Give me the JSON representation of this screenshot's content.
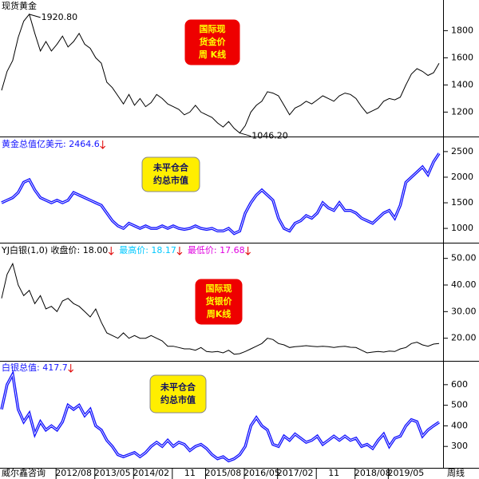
{
  "chart_data": [
    {
      "type": "line",
      "title": "现货黄金",
      "box": [
        "国际现",
        "货金价",
        "周 K线"
      ],
      "box_style": "red",
      "annotations": [
        "1920.80",
        "1046.20"
      ],
      "color": "#000000",
      "values": [
        1360,
        1500,
        1580,
        1750,
        1870,
        1920.8,
        1780,
        1650,
        1720,
        1650,
        1700,
        1760,
        1680,
        1720,
        1780,
        1700,
        1670,
        1600,
        1560,
        1420,
        1380,
        1320,
        1260,
        1330,
        1250,
        1300,
        1240,
        1270,
        1330,
        1300,
        1260,
        1240,
        1220,
        1180,
        1200,
        1250,
        1200,
        1180,
        1160,
        1120,
        1090,
        1130,
        1080,
        1046.2,
        1100,
        1200,
        1250,
        1280,
        1350,
        1340,
        1320,
        1250,
        1180,
        1230,
        1250,
        1280,
        1260,
        1290,
        1320,
        1300,
        1280,
        1320,
        1340,
        1330,
        1300,
        1240,
        1190,
        1210,
        1230,
        1280,
        1300,
        1290,
        1310,
        1400,
        1480,
        1520,
        1500,
        1470,
        1490,
        1560
      ],
      "ylim": [
        1026,
        2014
      ],
      "yticks": [
        1200,
        1400,
        1600,
        1800
      ]
    },
    {
      "type": "line",
      "title": "黄金总值亿美元: 2464.6",
      "box": [
        "未平仓合",
        "约总市值"
      ],
      "box_style": "yellow",
      "color": "#1414ff",
      "values": [
        1500,
        1550,
        1600,
        1700,
        1900,
        1950,
        1750,
        1600,
        1550,
        1500,
        1550,
        1500,
        1550,
        1700,
        1650,
        1600,
        1550,
        1500,
        1450,
        1300,
        1150,
        1050,
        1000,
        1100,
        1050,
        1000,
        1050,
        1000,
        1000,
        1050,
        1000,
        1050,
        1000,
        980,
        1000,
        1050,
        1000,
        980,
        1000,
        950,
        950,
        1000,
        900,
        950,
        1300,
        1500,
        1650,
        1750,
        1650,
        1550,
        1200,
        1000,
        950,
        1100,
        1150,
        1250,
        1200,
        1300,
        1500,
        1400,
        1350,
        1500,
        1350,
        1350,
        1300,
        1200,
        1150,
        1100,
        1200,
        1300,
        1350,
        1200,
        1450,
        1900,
        2000,
        2100,
        2200,
        2050,
        2300,
        2464.6
      ],
      "ylim": [
        752,
        2732
      ],
      "yticks": [
        1000,
        1500,
        2000,
        2500
      ]
    },
    {
      "type": "line",
      "title": "YJ白银(1,0) 收盘价: 18.00",
      "subtitles": [
        {
          "text": "最高价: 18.17",
          "color": "#00c8ff"
        },
        {
          "text": "最低价: 17.68",
          "color": "#e000e0"
        }
      ],
      "box": [
        "国际现",
        "货银价",
        "周K线"
      ],
      "box_style": "red",
      "color": "#000000",
      "values": [
        35,
        44,
        48,
        40,
        36,
        38,
        33,
        36,
        31,
        32,
        30,
        34,
        35,
        33,
        32,
        30,
        28,
        31,
        26,
        22,
        21,
        20,
        22,
        20,
        21,
        20,
        20,
        21,
        20,
        19,
        17,
        17,
        16.5,
        16,
        16,
        15.5,
        16.5,
        15,
        14.8,
        15,
        14.5,
        15.5,
        14,
        14.2,
        15,
        16,
        17,
        18,
        20,
        19.5,
        18,
        17.5,
        16.5,
        16.8,
        17,
        17.2,
        17,
        16.8,
        17,
        16.8,
        16.5,
        16.8,
        17,
        16.6,
        16.5,
        15.5,
        14.5,
        14.8,
        15,
        14.8,
        15.2,
        15,
        16,
        16.5,
        18,
        18.5,
        17.5,
        17,
        17.8,
        18
      ],
      "ylim": [
        11.8,
        54.7
      ],
      "yticks": [
        {
          "value": 20,
          "label": "20.00"
        },
        {
          "value": 30,
          "label": "30.00"
        },
        {
          "value": 40,
          "label": "40.00"
        },
        {
          "value": 50,
          "label": "50.00"
        }
      ]
    },
    {
      "type": "line",
      "title": "白银总值: 417.7",
      "box": [
        "未平仓合",
        "约总市值"
      ],
      "box_style": "yellow",
      "color": "#1414ff",
      "values": [
        480,
        600,
        650,
        480,
        420,
        460,
        360,
        420,
        380,
        400,
        380,
        420,
        500,
        480,
        500,
        450,
        480,
        400,
        380,
        330,
        300,
        260,
        250,
        260,
        270,
        250,
        270,
        300,
        320,
        300,
        330,
        300,
        320,
        310,
        280,
        300,
        310,
        290,
        260,
        240,
        250,
        230,
        240,
        260,
        300,
        400,
        440,
        400,
        380,
        310,
        300,
        350,
        330,
        360,
        340,
        320,
        330,
        350,
        310,
        330,
        350,
        330,
        350,
        330,
        340,
        300,
        310,
        290,
        330,
        360,
        300,
        340,
        350,
        400,
        430,
        420,
        350,
        380,
        400,
        417.7
      ],
      "ylim": [
        200,
        704
      ],
      "yticks": [
        300,
        400,
        500,
        600
      ]
    }
  ],
  "x_axis": {
    "left_label": "威尔鑫咨询",
    "right_label": "周线",
    "categories": [
      null,
      null,
      null,
      null,
      null,
      null,
      null,
      null,
      null,
      null,
      null,
      null,
      null,
      "2012/08",
      null,
      null,
      null,
      null,
      null,
      null,
      "2013/05",
      null,
      null,
      null,
      null,
      null,
      null,
      "2014/02",
      null,
      null,
      null,
      null,
      null,
      null,
      "11",
      null,
      null,
      null,
      null,
      null,
      "2015/08",
      null,
      null,
      null,
      null,
      null,
      null,
      "2016/05",
      null,
      null,
      null,
      null,
      null,
      "2017/02",
      null,
      null,
      null,
      null,
      null,
      null,
      "11",
      null,
      null,
      null,
      null,
      null,
      null,
      "2018/08",
      null,
      null,
      null,
      null,
      null,
      "2019/05",
      null,
      null,
      null,
      null,
      null,
      null
    ]
  }
}
